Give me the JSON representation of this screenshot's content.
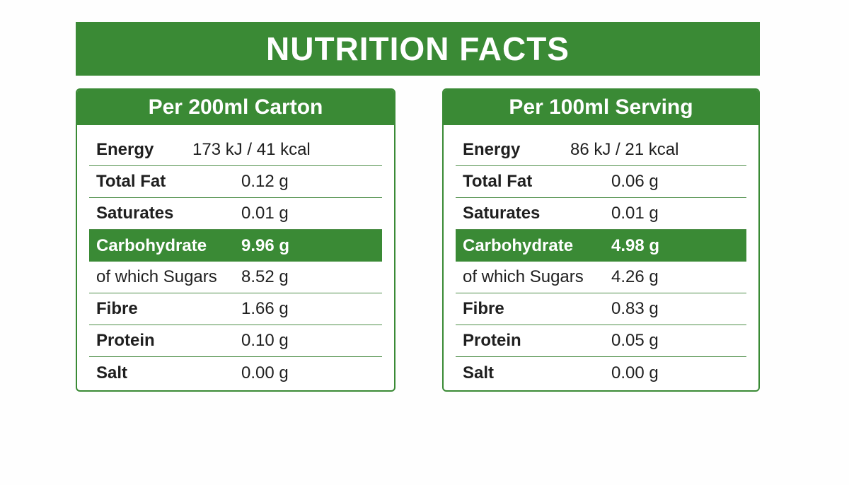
{
  "title": "NUTRITION FACTS",
  "colors": {
    "accent": "#3a8a35",
    "text": "#1f1f1f",
    "background": "#fefefe"
  },
  "panels": [
    {
      "header": "Per 200ml Carton",
      "rows": [
        {
          "label": "Energy",
          "value": "173 kJ / 41 kcal"
        },
        {
          "label": "Total Fat",
          "value": "0.12 g"
        },
        {
          "label": "Saturates",
          "value": "0.01 g"
        },
        {
          "label": "Carbohydrate",
          "value": "9.96 g"
        },
        {
          "label": "of which Sugars",
          "value": "8.52 g"
        },
        {
          "label": "Fibre",
          "value": "1.66 g"
        },
        {
          "label": "Protein",
          "value": "0.10 g"
        },
        {
          "label": "Salt",
          "value": "0.00 g"
        }
      ]
    },
    {
      "header": "Per 100ml Serving",
      "rows": [
        {
          "label": "Energy",
          "value": "86 kJ / 21 kcal"
        },
        {
          "label": "Total Fat",
          "value": "0.06 g"
        },
        {
          "label": "Saturates",
          "value": "0.01 g"
        },
        {
          "label": "Carbohydrate",
          "value": "4.98 g"
        },
        {
          "label": "of which Sugars",
          "value": "4.26 g"
        },
        {
          "label": "Fibre",
          "value": "0.83 g"
        },
        {
          "label": "Protein",
          "value": "0.05 g"
        },
        {
          "label": "Salt",
          "value": "0.00 g"
        }
      ]
    }
  ]
}
